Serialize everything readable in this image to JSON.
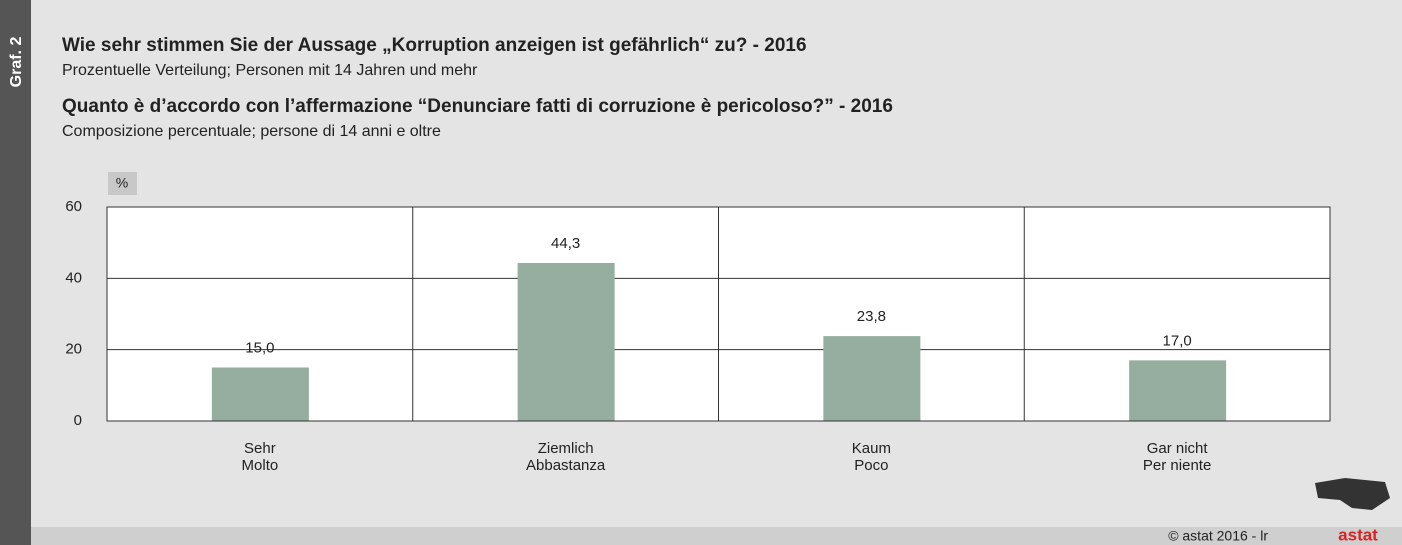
{
  "side_label": "Graf. 2",
  "chart_data": {
    "type": "bar",
    "title": "Wie sehr stimmen Sie der Aussage „Korruption anzeigen ist gefährlich“ zu? - 2016",
    "subtitle": "Prozentuelle Verteilung; Personen mit 14 Jahren und mehr",
    "title_it": "Quanto è d’accordo con l’affermazione “Denunciare fatti di corruzione è pericoloso?” - 2016",
    "subtitle_it": "Composizione percentuale; persone di 14 anni e oltre",
    "y_unit": "%",
    "categories": [
      [
        "Sehr",
        "Molto"
      ],
      [
        "Ziemlich",
        "Abbastanza"
      ],
      [
        "Kaum",
        "Poco"
      ],
      [
        "Gar nicht",
        "Per niente"
      ]
    ],
    "values": [
      15.0,
      44.3,
      23.8,
      17.0
    ],
    "value_labels": [
      "15,0",
      "44,3",
      "23,8",
      "17,0"
    ],
    "color": "#95ae9f",
    "ylim": [
      0,
      60
    ],
    "yticks": [
      0,
      20,
      40,
      60
    ],
    "grid": true
  },
  "footer": {
    "copyright": "© astat 2016 - lr",
    "logo": "astat"
  }
}
